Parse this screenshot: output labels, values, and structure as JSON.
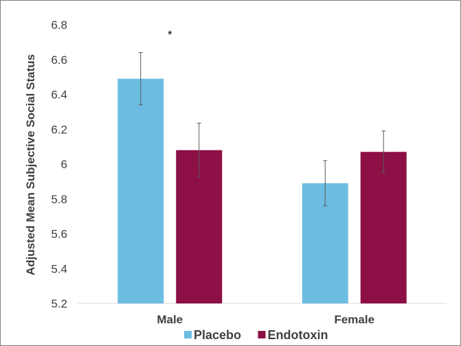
{
  "chart_data": {
    "type": "bar",
    "title": "",
    "xlabel": "",
    "ylabel": "Adjusted Mean Subjective Social Status",
    "ylim": [
      5.2,
      6.8
    ],
    "yticks": [
      "5.2",
      "5.4",
      "5.6",
      "5.8",
      "6",
      "6.2",
      "6.4",
      "6.6",
      "6.8"
    ],
    "grid": false,
    "legend_position": "bottom",
    "categories": [
      "Male",
      "Female"
    ],
    "series": [
      {
        "name": "Placebo",
        "color": "#6dbde2",
        "values": [
          6.49,
          5.89
        ],
        "errors": [
          0.15,
          0.13
        ]
      },
      {
        "name": "Endotoxin",
        "color": "#8c1045",
        "values": [
          6.08,
          6.07
        ],
        "errors": [
          0.155,
          0.12
        ]
      }
    ],
    "annotations": [
      {
        "text": "*",
        "category": "Male"
      }
    ]
  }
}
